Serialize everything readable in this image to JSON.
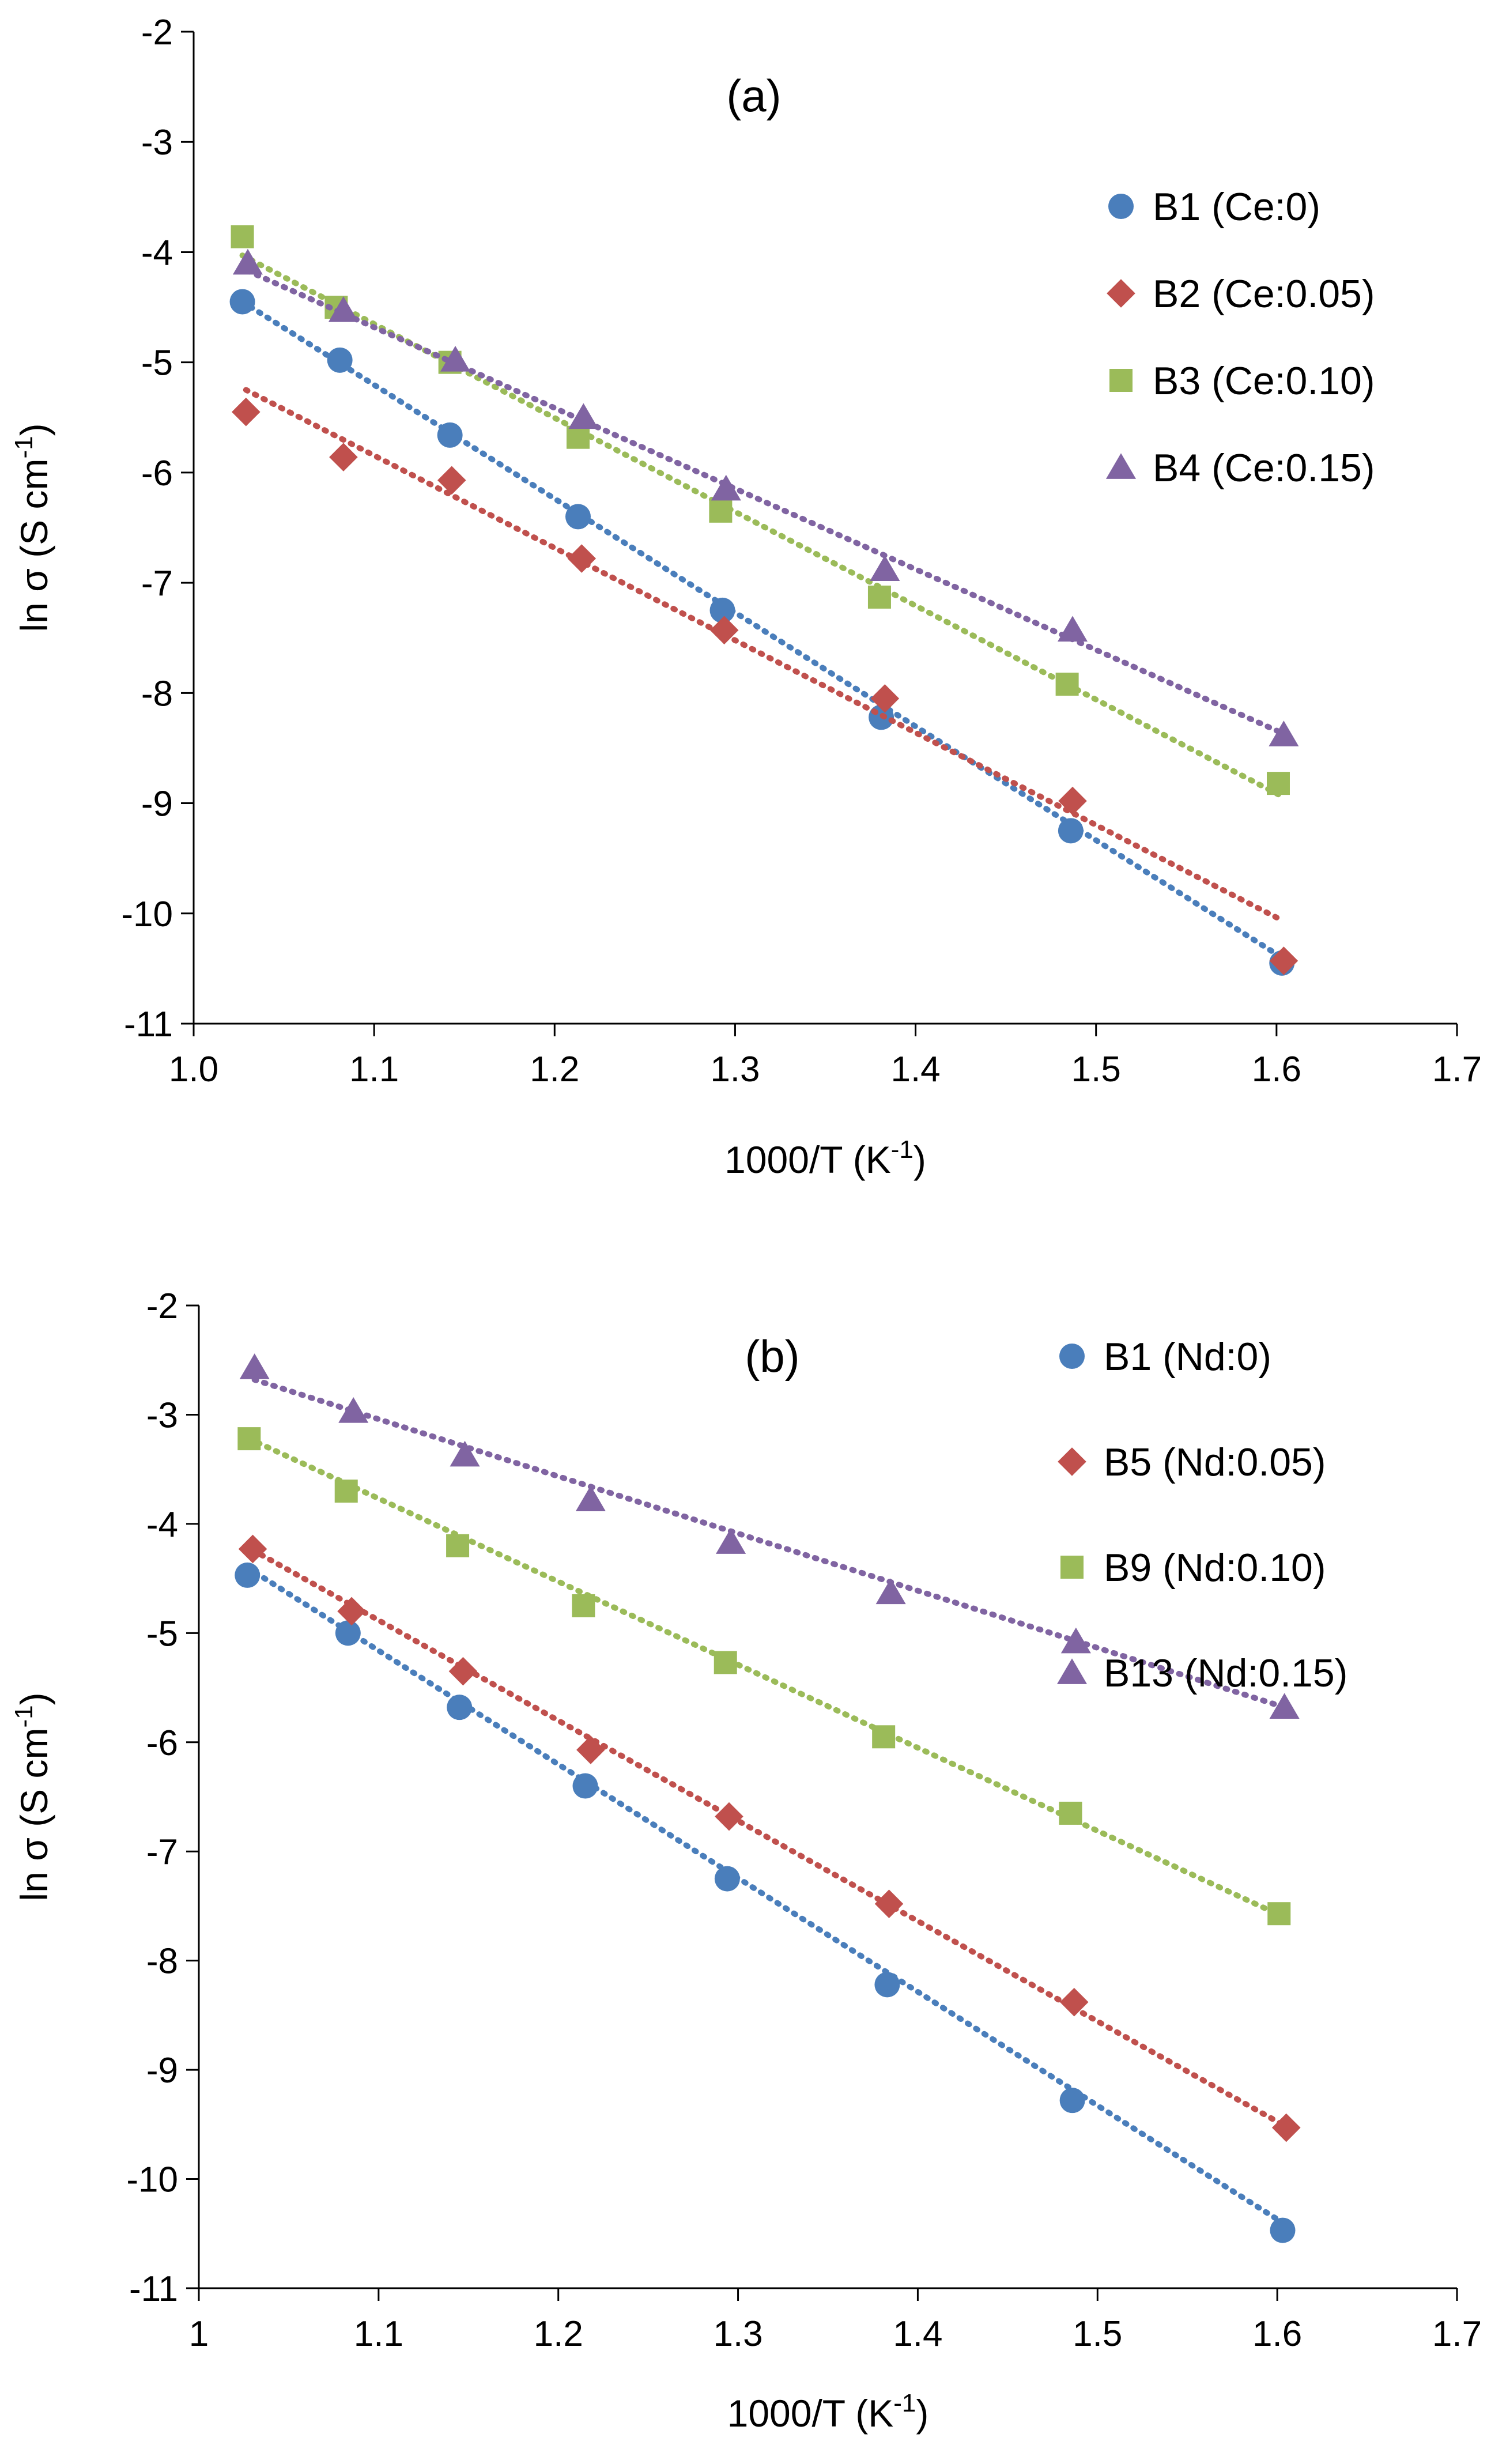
{
  "chart_data": [
    {
      "type": "scatter",
      "title": "(a)",
      "xlabel": "1000/T (K",
      "xlabel_sup": "-1",
      "xlabel_end": ")",
      "ylabel": "ln σ (S cm",
      "ylabel_sup": "-1",
      "ylabel_end": ")",
      "xlim": [
        1.0,
        1.7
      ],
      "ylim": [
        -11,
        -2
      ],
      "xticks": [
        1.0,
        1.1,
        1.2,
        1.3,
        1.4,
        1.5,
        1.6,
        1.7
      ],
      "xtick_labels": [
        "1.0",
        "1.1",
        "1.2",
        "1.3",
        "1.4",
        "1.5",
        "1.6",
        "1.7"
      ],
      "yticks": [
        -2,
        -3,
        -4,
        -5,
        -6,
        -7,
        -8,
        -9,
        -10,
        -11
      ],
      "ytick_labels": [
        "-2",
        "-3",
        "-4",
        "-5",
        "-6",
        "-7",
        "-8",
        "-9",
        "-10",
        "-11"
      ],
      "grid": false,
      "legend_position": "top-right",
      "series": [
        {
          "name": "B1 (Ce:0)",
          "marker": "circle",
          "color": "#4A7EBB",
          "x": [
            1.027,
            1.081,
            1.142,
            1.213,
            1.293,
            1.381,
            1.486,
            1.603
          ],
          "y": [
            -4.45,
            -4.98,
            -5.66,
            -6.4,
            -7.25,
            -8.22,
            -9.25,
            -10.45
          ],
          "fit": {
            "x": [
              1.027,
              1.603
            ],
            "y": [
              -4.45,
              -10.4
            ]
          }
        },
        {
          "name": "B2 (Ce:0.05)",
          "marker": "diamond",
          "color": "#C0504D",
          "x": [
            1.029,
            1.083,
            1.143,
            1.215,
            1.294,
            1.383,
            1.487,
            1.604
          ],
          "y": [
            -5.45,
            -5.86,
            -6.07,
            -6.78,
            -7.43,
            -8.05,
            -8.98,
            -10.43
          ],
          "fit": {
            "x": [
              1.029,
              1.604
            ],
            "y": [
              -5.25,
              -10.07
            ]
          }
        },
        {
          "name": "B3 (Ce:0.10)",
          "marker": "square",
          "color": "#9BBB59",
          "x": [
            1.027,
            1.079,
            1.142,
            1.213,
            1.292,
            1.38,
            1.484,
            1.601
          ],
          "y": [
            -3.86,
            -4.5,
            -5.0,
            -5.68,
            -6.35,
            -7.13,
            -7.92,
            -8.82
          ],
          "fit": {
            "x": [
              1.027,
              1.601
            ],
            "y": [
              -4.03,
              -8.92
            ]
          }
        },
        {
          "name": "B4 (Ce:0.15)",
          "marker": "triangle",
          "color": "#8064A2",
          "x": [
            1.03,
            1.083,
            1.145,
            1.216,
            1.295,
            1.383,
            1.487,
            1.604
          ],
          "y": [
            -4.1,
            -4.53,
            -4.98,
            -5.5,
            -6.15,
            -6.88,
            -7.43,
            -8.38
          ],
          "fit": {
            "x": [
              1.03,
              1.604
            ],
            "y": [
              -4.17,
              -8.37
            ]
          }
        }
      ]
    },
    {
      "type": "scatter",
      "title": "(b)",
      "xlabel": "1000/T (K",
      "xlabel_sup": "-1",
      "xlabel_end": ")",
      "ylabel": "ln σ (S cm",
      "ylabel_sup": "-1",
      "ylabel_end": ")",
      "xlim": [
        1.0,
        1.7
      ],
      "ylim": [
        -11,
        -2
      ],
      "xticks": [
        1.0,
        1.1,
        1.2,
        1.3,
        1.4,
        1.5,
        1.6,
        1.7
      ],
      "xtick_labels": [
        "1",
        "1.1",
        "1.2",
        "1.3",
        "1.4",
        "1.5",
        "1.6",
        "1.7"
      ],
      "yticks": [
        -2,
        -3,
        -4,
        -5,
        -6,
        -7,
        -8,
        -9,
        -10,
        -11
      ],
      "ytick_labels": [
        "-2",
        "-3",
        "-4",
        "-5",
        "-6",
        "-7",
        "-8",
        "-9",
        "-10",
        "-11"
      ],
      "grid": false,
      "legend_position": "top-right",
      "series": [
        {
          "name": "B1 (Nd:0)",
          "marker": "circle",
          "color": "#4A7EBB",
          "x": [
            1.027,
            1.083,
            1.145,
            1.215,
            1.294,
            1.383,
            1.486,
            1.603
          ],
          "y": [
            -4.47,
            -5.0,
            -5.68,
            -6.4,
            -7.25,
            -8.22,
            -9.28,
            -10.47
          ],
          "fit": {
            "x": [
              1.027,
              1.603
            ],
            "y": [
              -4.4,
              -10.4
            ]
          }
        },
        {
          "name": "B5 (Nd:0.05)",
          "marker": "diamond",
          "color": "#C0504D",
          "x": [
            1.03,
            1.085,
            1.147,
            1.218,
            1.295,
            1.384,
            1.487,
            1.605
          ],
          "y": [
            -4.23,
            -4.8,
            -5.35,
            -6.07,
            -6.68,
            -7.48,
            -8.38,
            -9.53
          ],
          "fit": {
            "x": [
              1.03,
              1.605
            ],
            "y": [
              -4.24,
              -9.52
            ]
          }
        },
        {
          "name": "B9 (Nd:0.10)",
          "marker": "square",
          "color": "#9BBB59",
          "x": [
            1.028,
            1.082,
            1.144,
            1.214,
            1.293,
            1.381,
            1.485,
            1.601
          ],
          "y": [
            -3.22,
            -3.7,
            -4.2,
            -4.75,
            -5.27,
            -5.95,
            -6.65,
            -7.57
          ],
          "fit": {
            "x": [
              1.028,
              1.601
            ],
            "y": [
              -3.22,
              -7.58
            ]
          }
        },
        {
          "name": "B13 (Nd:0.15)",
          "marker": "triangle",
          "color": "#8064A2",
          "x": [
            1.031,
            1.086,
            1.148,
            1.218,
            1.296,
            1.385,
            1.488,
            1.604
          ],
          "y": [
            -2.57,
            -2.97,
            -3.37,
            -3.78,
            -4.17,
            -4.63,
            -5.08,
            -5.68
          ],
          "fit": {
            "x": [
              1.031,
              1.604
            ],
            "y": [
              -2.68,
              -5.68
            ]
          }
        }
      ]
    }
  ]
}
